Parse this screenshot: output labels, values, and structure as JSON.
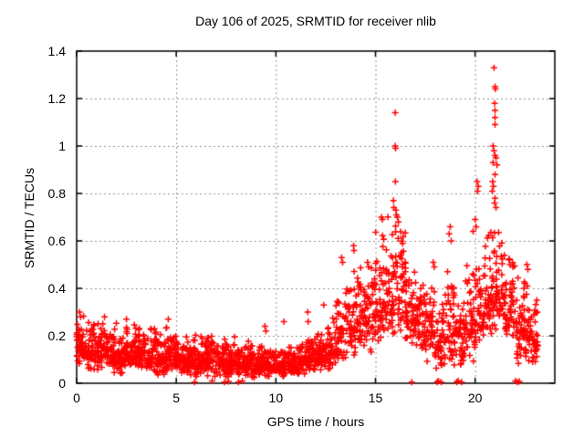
{
  "chart_data": {
    "type": "scatter",
    "title": "Day 106 of 2025, SRMTID for receiver nlib",
    "xlabel": "GPS time / hours",
    "ylabel": "SRMTID / TECUs",
    "xlim": [
      0,
      24
    ],
    "ylim": [
      0,
      1.4
    ],
    "x_data_end": 23.2,
    "xtick_labels": [
      "0",
      "5",
      "10",
      "15",
      "20"
    ],
    "xtick_values": [
      0,
      5,
      10,
      15,
      20
    ],
    "ytick_labels": [
      "0",
      "0.2",
      "0.4",
      "0.6",
      "0.8",
      "1",
      "1.2",
      "1.4"
    ],
    "ytick_values": [
      0,
      0.2,
      0.4,
      0.6,
      0.8,
      1.0,
      1.2,
      1.4
    ],
    "grid": true,
    "grid_color": "#909090",
    "border_color": "#000000",
    "marker": "+",
    "marker_color": "#ff0000",
    "series_name": "SRMTID",
    "render_seed": 42,
    "envelope_bins": {
      "bin_width_hours": 0.5,
      "columns": [
        "start_hour",
        "min",
        "max",
        "median",
        "count"
      ],
      "rows": [
        [
          0.0,
          0.06,
          0.3,
          0.15,
          50
        ],
        [
          0.5,
          0.05,
          0.27,
          0.13,
          50
        ],
        [
          1.0,
          0.05,
          0.28,
          0.13,
          50
        ],
        [
          1.5,
          0.04,
          0.26,
          0.12,
          50
        ],
        [
          2.0,
          0.03,
          0.22,
          0.1,
          50
        ],
        [
          2.5,
          0.05,
          0.27,
          0.13,
          50
        ],
        [
          3.0,
          0.04,
          0.24,
          0.12,
          50
        ],
        [
          3.5,
          0.03,
          0.26,
          0.11,
          50
        ],
        [
          4.0,
          0.03,
          0.22,
          0.1,
          50
        ],
        [
          4.5,
          0.04,
          0.27,
          0.12,
          50
        ],
        [
          5.0,
          0.03,
          0.22,
          0.1,
          50
        ],
        [
          5.5,
          0.02,
          0.23,
          0.1,
          50
        ],
        [
          6.0,
          0.02,
          0.2,
          0.09,
          50
        ],
        [
          6.5,
          0.02,
          0.22,
          0.1,
          50
        ],
        [
          7.0,
          0.02,
          0.2,
          0.09,
          50
        ],
        [
          7.5,
          0.02,
          0.21,
          0.09,
          50
        ],
        [
          8.0,
          0.02,
          0.18,
          0.08,
          50
        ],
        [
          8.5,
          0.02,
          0.18,
          0.08,
          50
        ],
        [
          9.0,
          0.02,
          0.17,
          0.07,
          50
        ],
        [
          9.5,
          0.02,
          0.16,
          0.07,
          50
        ],
        [
          10.0,
          0.02,
          0.17,
          0.08,
          50
        ],
        [
          10.5,
          0.03,
          0.16,
          0.08,
          50
        ],
        [
          11.0,
          0.03,
          0.18,
          0.09,
          50
        ],
        [
          11.5,
          0.03,
          0.2,
          0.1,
          50
        ],
        [
          12.0,
          0.04,
          0.22,
          0.11,
          50
        ],
        [
          12.5,
          0.05,
          0.3,
          0.14,
          45
        ],
        [
          13.0,
          0.07,
          0.4,
          0.18,
          45
        ],
        [
          13.5,
          0.1,
          0.5,
          0.25,
          45
        ],
        [
          14.0,
          0.1,
          0.5,
          0.27,
          45
        ],
        [
          14.5,
          0.12,
          0.55,
          0.28,
          45
        ],
        [
          15.0,
          0.15,
          0.65,
          0.33,
          45
        ],
        [
          15.5,
          0.18,
          0.72,
          0.38,
          48
        ],
        [
          16.0,
          0.18,
          0.72,
          0.36,
          48
        ],
        [
          16.5,
          0.15,
          0.5,
          0.28,
          45
        ],
        [
          17.0,
          0.12,
          0.45,
          0.25,
          45
        ],
        [
          17.5,
          0.08,
          0.48,
          0.22,
          45
        ],
        [
          18.0,
          0.04,
          0.4,
          0.18,
          45
        ],
        [
          18.5,
          0.06,
          0.5,
          0.22,
          45
        ],
        [
          19.0,
          0.05,
          0.45,
          0.22,
          45
        ],
        [
          19.5,
          0.08,
          0.52,
          0.26,
          45
        ],
        [
          20.0,
          0.15,
          0.65,
          0.31,
          45
        ],
        [
          20.5,
          0.18,
          0.7,
          0.35,
          48
        ],
        [
          21.0,
          0.22,
          0.72,
          0.38,
          48
        ],
        [
          21.5,
          0.15,
          0.55,
          0.29,
          45
        ],
        [
          22.0,
          0.06,
          0.45,
          0.21,
          45
        ],
        [
          22.5,
          0.05,
          0.48,
          0.19,
          45
        ],
        [
          23.0,
          0.08,
          0.35,
          0.17,
          20
        ]
      ]
    },
    "outlier_points": [
      [
        5.92,
        0.005
      ],
      [
        6.8,
        0.01
      ],
      [
        7.42,
        0.005
      ],
      [
        7.62,
        0.008
      ],
      [
        8.12,
        0.005
      ],
      [
        8.32,
        0.01
      ],
      [
        16.82,
        0.005
      ],
      [
        18.1,
        0.005
      ],
      [
        18.16,
        0.01
      ],
      [
        18.3,
        0.005
      ],
      [
        19.08,
        0.005
      ],
      [
        19.15,
        0.01
      ],
      [
        19.32,
        0.005
      ],
      [
        22.02,
        0.01
      ],
      [
        22.12,
        0.005
      ],
      [
        22.22,
        0.008
      ],
      [
        0.15,
        0.3
      ],
      [
        0.2,
        0.28
      ],
      [
        1.4,
        0.28
      ],
      [
        2.5,
        0.27
      ],
      [
        4.6,
        0.27
      ],
      [
        9.45,
        0.24
      ],
      [
        9.5,
        0.22
      ],
      [
        10.4,
        0.26
      ],
      [
        11.6,
        0.3
      ],
      [
        11.62,
        0.26
      ],
      [
        12.4,
        0.33
      ],
      [
        13.3,
        0.53
      ],
      [
        13.35,
        0.51
      ],
      [
        13.9,
        0.58
      ],
      [
        13.92,
        0.56
      ],
      [
        14.6,
        0.51
      ],
      [
        14.65,
        0.49
      ],
      [
        15.3,
        0.7
      ],
      [
        15.35,
        0.69
      ],
      [
        15.9,
        0.77
      ],
      [
        15.92,
        0.74
      ],
      [
        15.99,
        1.14
      ],
      [
        15.99,
        1.0
      ],
      [
        16.01,
        0.99
      ],
      [
        16.0,
        0.85
      ],
      [
        16.02,
        0.73
      ],
      [
        16.05,
        0.71
      ],
      [
        16.1,
        0.7
      ],
      [
        16.15,
        0.68
      ],
      [
        16.5,
        0.51
      ],
      [
        17.9,
        0.51
      ],
      [
        17.95,
        0.49
      ],
      [
        18.62,
        0.47
      ],
      [
        18.7,
        0.63
      ],
      [
        18.75,
        0.66
      ],
      [
        18.8,
        0.6
      ],
      [
        19.9,
        0.64
      ],
      [
        20.0,
        0.69
      ],
      [
        20.05,
        0.66
      ],
      [
        20.1,
        0.85
      ],
      [
        20.12,
        0.81
      ],
      [
        20.16,
        0.83
      ],
      [
        20.95,
        1.33
      ],
      [
        21.0,
        1.25
      ],
      [
        21.02,
        1.24
      ],
      [
        20.98,
        1.18
      ],
      [
        21.0,
        1.15
      ],
      [
        21.0,
        1.12
      ],
      [
        21.0,
        1.09
      ],
      [
        20.9,
        1.0
      ],
      [
        20.95,
        0.98
      ],
      [
        21.0,
        0.96
      ],
      [
        21.05,
        0.95
      ],
      [
        20.9,
        0.93
      ],
      [
        21.1,
        0.92
      ],
      [
        21.0,
        0.88
      ],
      [
        20.88,
        0.85
      ],
      [
        20.92,
        0.83
      ],
      [
        20.86,
        0.81
      ],
      [
        21.0,
        0.78
      ],
      [
        20.98,
        0.76
      ],
      [
        21.05,
        0.74
      ],
      [
        21.7,
        0.52
      ],
      [
        21.75,
        0.5
      ],
      [
        21.9,
        0.49
      ],
      [
        22.45,
        0.4
      ],
      [
        22.5,
        0.42
      ],
      [
        22.6,
        0.5
      ],
      [
        22.65,
        0.48
      ],
      [
        22.62,
        0.41
      ],
      [
        23.1,
        0.35
      ],
      [
        23.12,
        0.3
      ]
    ]
  }
}
